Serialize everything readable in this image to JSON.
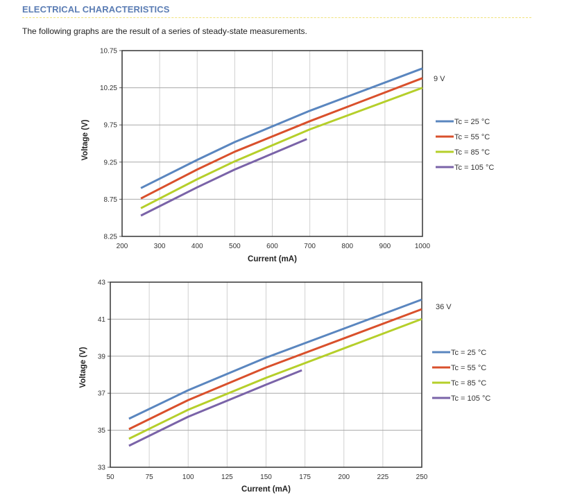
{
  "header": {
    "title": "ELECTRICAL CHARACTERISTICS",
    "intro": "The following graphs are the result of a series of steady-state measurements."
  },
  "colors": {
    "heading": "#5b7db4",
    "rule": "#f0e27a",
    "tc25": "#5a86bf",
    "tc55": "#d9502c",
    "tc85": "#b5cf2a",
    "tc105": "#7a63a8"
  },
  "chart_data": [
    {
      "type": "line",
      "title": "",
      "annotation": "9 V",
      "xlabel": "Current (mA)",
      "ylabel": "Voltage (V)",
      "xlim": [
        200,
        1000
      ],
      "ylim": [
        8.25,
        10.75
      ],
      "xticks": [
        "200",
        "300",
        "400",
        "500",
        "600",
        "700",
        "800",
        "900",
        "1000"
      ],
      "yticks": [
        "8.25",
        "8.75",
        "9.25",
        "9.75",
        "10.25",
        "10.75"
      ],
      "grid": true,
      "legend_position": "right",
      "series": [
        {
          "name": "Tc = 25 °C",
          "color_key": "tc25",
          "x": [
            250,
            400,
            500,
            700,
            1000
          ],
          "y": [
            8.9,
            9.28,
            9.52,
            9.94,
            10.51
          ]
        },
        {
          "name": "Tc = 55 °C",
          "color_key": "tc55",
          "x": [
            250,
            400,
            500,
            700,
            1000
          ],
          "y": [
            8.76,
            9.15,
            9.39,
            9.8,
            10.38
          ]
        },
        {
          "name": "Tc = 85 °C",
          "color_key": "tc85",
          "x": [
            250,
            400,
            500,
            700,
            1000
          ],
          "y": [
            8.63,
            9.02,
            9.26,
            9.69,
            10.25
          ]
        },
        {
          "name": "Tc = 105 °C",
          "color_key": "tc105",
          "x": [
            250,
            400,
            500,
            692
          ],
          "y": [
            8.53,
            8.91,
            9.15,
            9.56
          ]
        }
      ]
    },
    {
      "type": "line",
      "title": "",
      "annotation": "36 V",
      "xlabel": "Current (mA)",
      "ylabel": "Voltage (V)",
      "xlim": [
        50,
        250
      ],
      "ylim": [
        33,
        43
      ],
      "xticks": [
        "50",
        "75",
        "100",
        "125",
        "150",
        "175",
        "200",
        "225",
        "250"
      ],
      "yticks": [
        "33",
        "35",
        "37",
        "39",
        "41",
        "43"
      ],
      "grid": true,
      "legend_position": "right",
      "series": [
        {
          "name": "Tc = 25 °C",
          "color_key": "tc25",
          "x": [
            62,
            100,
            150,
            250
          ],
          "y": [
            35.62,
            37.16,
            38.92,
            42.06
          ]
        },
        {
          "name": "Tc = 55 °C",
          "color_key": "tc55",
          "x": [
            62,
            100,
            150,
            250
          ],
          "y": [
            35.06,
            36.63,
            38.39,
            41.54
          ]
        },
        {
          "name": "Tc = 85 °C",
          "color_key": "tc85",
          "x": [
            62,
            100,
            150,
            250
          ],
          "y": [
            34.54,
            36.11,
            37.83,
            41.01
          ]
        },
        {
          "name": "Tc = 105 °C",
          "color_key": "tc105",
          "x": [
            62,
            100,
            150,
            173
          ],
          "y": [
            34.16,
            35.73,
            37.46,
            38.24
          ]
        }
      ]
    }
  ]
}
